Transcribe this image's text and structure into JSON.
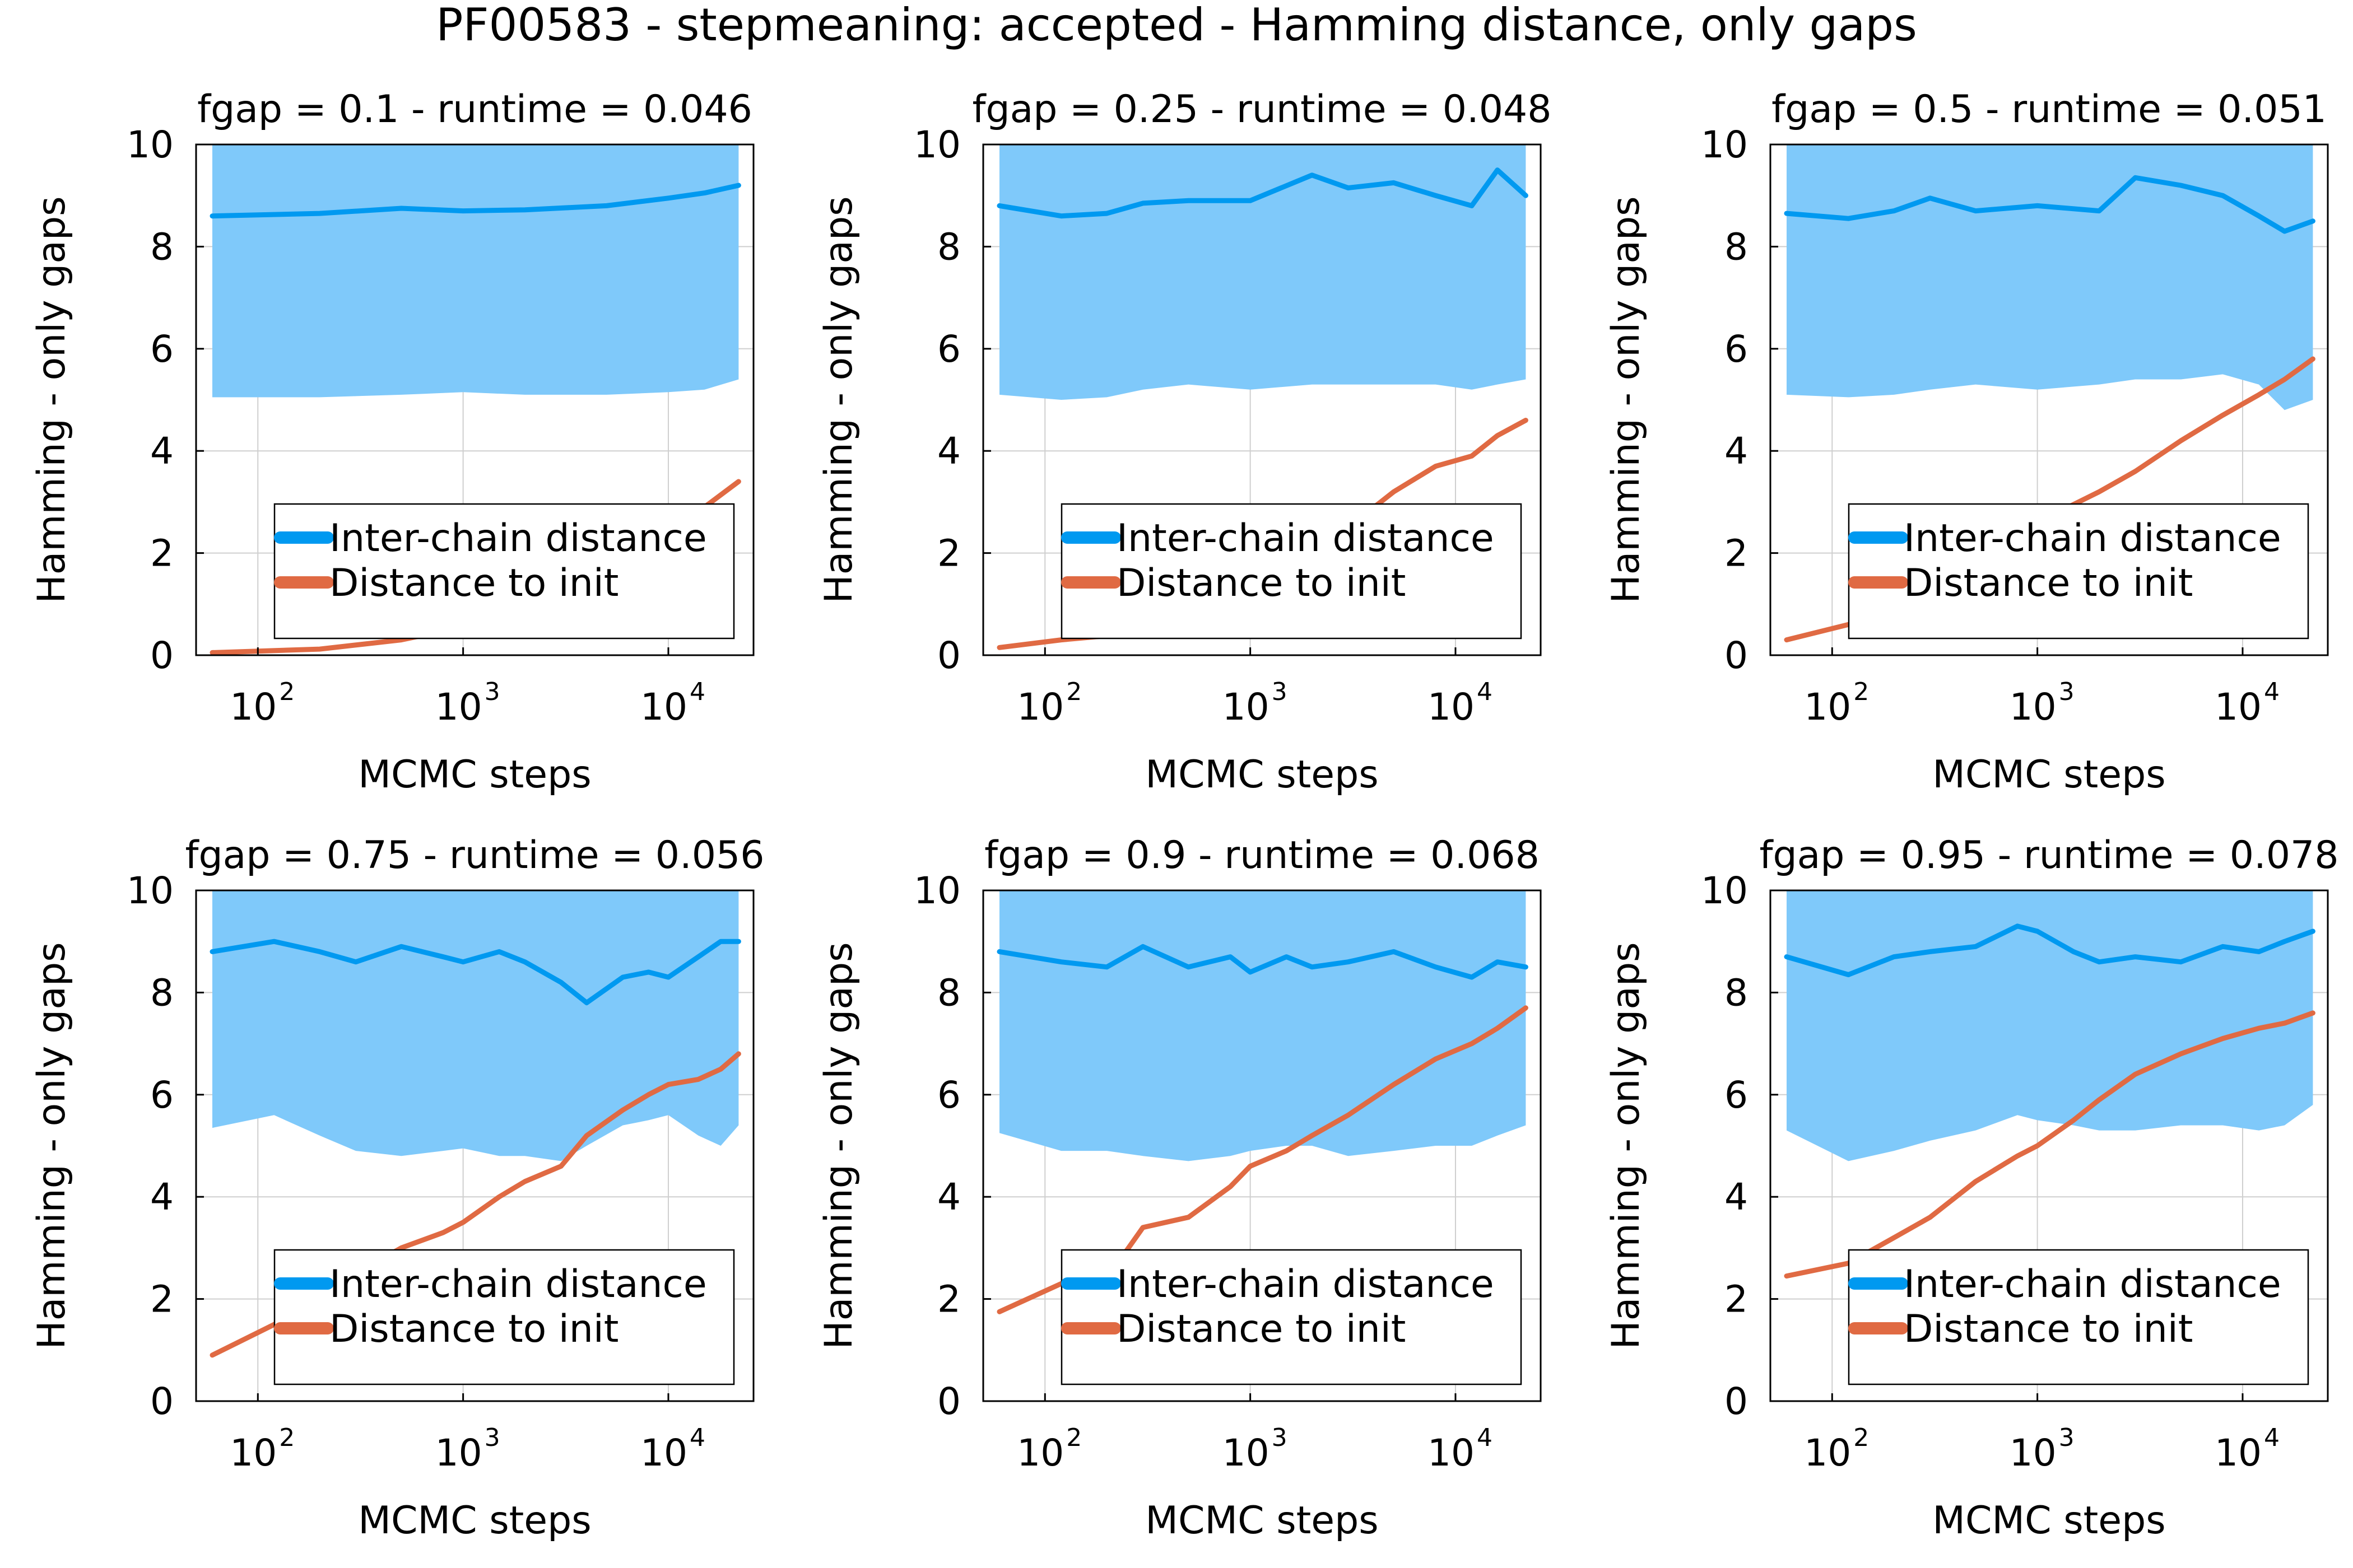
{
  "figure": {
    "title": "PF00583 - stepmeaning: accepted - Hamming distance, only gaps"
  },
  "colors": {
    "inter_chain": "#0099f0",
    "band": "#7fc9fa",
    "distance_init": "#e06a43",
    "grid": "#cfcfcf",
    "axis": "#000000"
  },
  "chart_data": [
    {
      "type": "line",
      "title": "fgap = 0.1 - runtime = 0.046",
      "xlabel": "MCMC steps",
      "ylabel": "Hamming - only gaps",
      "xscale": "log",
      "xlim": [
        50,
        26000
      ],
      "ylim": [
        0,
        10
      ],
      "xticks": [
        {
          "base": "10",
          "exp": "2"
        },
        {
          "base": "10",
          "exp": "3"
        },
        {
          "base": "10",
          "exp": "4"
        }
      ],
      "yticks": [
        "0",
        "2",
        "4",
        "6",
        "8",
        "10"
      ],
      "grid": true,
      "legend": {
        "placement": "bottom-right",
        "entries": [
          "Inter-chain distance",
          "Distance to init"
        ]
      },
      "series": [
        {
          "name": "Inter-chain distance",
          "x": [
            60,
            200,
            500,
            1000,
            2000,
            5000,
            10000,
            15000,
            22000
          ],
          "y": [
            8.6,
            8.65,
            8.75,
            8.7,
            8.72,
            8.8,
            8.95,
            9.05,
            9.2
          ],
          "band_low": [
            5.05,
            5.05,
            5.1,
            5.15,
            5.1,
            5.1,
            5.15,
            5.2,
            5.4
          ],
          "band_high": [
            10,
            10,
            10,
            10,
            10,
            10,
            10,
            10,
            10
          ]
        },
        {
          "name": "Distance to init",
          "x": [
            60,
            200,
            500,
            1000,
            2000,
            5000,
            10000,
            15000,
            22000
          ],
          "y": [
            0.05,
            0.12,
            0.3,
            0.55,
            0.9,
            1.6,
            2.4,
            2.9,
            3.4
          ]
        }
      ]
    },
    {
      "type": "line",
      "title": "fgap = 0.25 - runtime = 0.048",
      "xlabel": "MCMC steps",
      "ylabel": "Hamming - only gaps",
      "xscale": "log",
      "xlim": [
        50,
        26000
      ],
      "ylim": [
        0,
        10
      ],
      "xticks": [
        {
          "base": "10",
          "exp": "2"
        },
        {
          "base": "10",
          "exp": "3"
        },
        {
          "base": "10",
          "exp": "4"
        }
      ],
      "yticks": [
        "0",
        "2",
        "4",
        "6",
        "8",
        "10"
      ],
      "grid": true,
      "legend": {
        "placement": "bottom-right",
        "entries": [
          "Inter-chain distance",
          "Distance to init"
        ]
      },
      "series": [
        {
          "name": "Inter-chain distance",
          "x": [
            60,
            120,
            200,
            300,
            500,
            1000,
            2000,
            3000,
            5000,
            8000,
            12000,
            16000,
            22000
          ],
          "y": [
            8.8,
            8.6,
            8.65,
            8.85,
            8.9,
            8.9,
            9.4,
            9.15,
            9.25,
            9.0,
            8.8,
            9.5,
            9.0
          ],
          "band_low": [
            5.1,
            5.0,
            5.05,
            5.2,
            5.3,
            5.2,
            5.3,
            5.3,
            5.3,
            5.3,
            5.2,
            5.3,
            5.4
          ],
          "band_high": [
            10,
            10,
            10,
            10,
            10,
            10,
            10,
            10,
            10,
            10,
            10,
            10,
            10
          ]
        },
        {
          "name": "Distance to init",
          "x": [
            60,
            120,
            200,
            300,
            500,
            1000,
            2000,
            3000,
            5000,
            8000,
            12000,
            16000,
            22000
          ],
          "y": [
            0.15,
            0.3,
            0.38,
            0.5,
            0.8,
            1.3,
            2.0,
            2.5,
            3.2,
            3.7,
            3.9,
            4.3,
            4.6
          ]
        }
      ]
    },
    {
      "type": "line",
      "title": "fgap = 0.5 - runtime = 0.051",
      "xlabel": "MCMC steps",
      "ylabel": "Hamming - only gaps",
      "xscale": "log",
      "xlim": [
        50,
        26000
      ],
      "ylim": [
        0,
        10
      ],
      "xticks": [
        {
          "base": "10",
          "exp": "2"
        },
        {
          "base": "10",
          "exp": "3"
        },
        {
          "base": "10",
          "exp": "4"
        }
      ],
      "yticks": [
        "0",
        "2",
        "4",
        "6",
        "8",
        "10"
      ],
      "grid": true,
      "legend": {
        "placement": "bottom-right",
        "entries": [
          "Inter-chain distance",
          "Distance to init"
        ]
      },
      "series": [
        {
          "name": "Inter-chain distance",
          "x": [
            60,
            120,
            200,
            300,
            500,
            1000,
            2000,
            3000,
            5000,
            8000,
            12000,
            16000,
            22000
          ],
          "y": [
            8.65,
            8.55,
            8.7,
            8.95,
            8.7,
            8.8,
            8.7,
            9.35,
            9.2,
            9.0,
            8.6,
            8.3,
            8.5
          ],
          "band_low": [
            5.1,
            5.05,
            5.1,
            5.2,
            5.3,
            5.2,
            5.3,
            5.4,
            5.4,
            5.5,
            5.3,
            4.8,
            5.0
          ],
          "band_high": [
            10,
            10,
            10,
            10,
            10,
            10,
            10,
            10,
            10,
            10,
            10,
            10,
            10
          ]
        },
        {
          "name": "Distance to init",
          "x": [
            60,
            120,
            200,
            300,
            500,
            1000,
            2000,
            3000,
            5000,
            8000,
            12000,
            16000,
            22000
          ],
          "y": [
            0.3,
            0.6,
            0.9,
            1.3,
            1.9,
            2.6,
            3.2,
            3.6,
            4.2,
            4.7,
            5.1,
            5.4,
            5.8
          ]
        }
      ]
    },
    {
      "type": "line",
      "title": "fgap = 0.75 - runtime = 0.056",
      "xlabel": "MCMC steps",
      "ylabel": "Hamming - only gaps",
      "xscale": "log",
      "xlim": [
        50,
        26000
      ],
      "ylim": [
        0,
        10
      ],
      "xticks": [
        {
          "base": "10",
          "exp": "2"
        },
        {
          "base": "10",
          "exp": "3"
        },
        {
          "base": "10",
          "exp": "4"
        }
      ],
      "yticks": [
        "0",
        "2",
        "4",
        "6",
        "8",
        "10"
      ],
      "grid": true,
      "legend": {
        "placement": "bottom-right",
        "entries": [
          "Inter-chain distance",
          "Distance to init"
        ]
      },
      "series": [
        {
          "name": "Inter-chain distance",
          "x": [
            60,
            120,
            200,
            300,
            500,
            800,
            1000,
            1500,
            2000,
            3000,
            4000,
            6000,
            8000,
            10000,
            14000,
            18000,
            22000
          ],
          "y": [
            8.8,
            9.0,
            8.8,
            8.6,
            8.9,
            8.7,
            8.6,
            8.8,
            8.6,
            8.2,
            7.8,
            8.3,
            8.4,
            8.3,
            8.7,
            9.0,
            9.0
          ],
          "band_low": [
            5.35,
            5.6,
            5.2,
            4.9,
            4.8,
            4.9,
            4.95,
            4.8,
            4.8,
            4.7,
            5.0,
            5.4,
            5.5,
            5.6,
            5.2,
            5.0,
            5.4
          ],
          "band_high": [
            10,
            10,
            10,
            10,
            10,
            10,
            10,
            10,
            10,
            10,
            10,
            10,
            10,
            10,
            10,
            10,
            10
          ]
        },
        {
          "name": "Distance to init",
          "x": [
            60,
            120,
            200,
            300,
            500,
            800,
            1000,
            1500,
            2000,
            3000,
            4000,
            6000,
            8000,
            10000,
            14000,
            18000,
            22000
          ],
          "y": [
            0.9,
            1.5,
            2.0,
            2.5,
            3.0,
            3.3,
            3.5,
            4.0,
            4.3,
            4.6,
            5.2,
            5.7,
            6.0,
            6.2,
            6.3,
            6.5,
            6.8
          ]
        }
      ]
    },
    {
      "type": "line",
      "title": "fgap = 0.9 - runtime = 0.068",
      "xlabel": "MCMC steps",
      "ylabel": "Hamming - only gaps",
      "xscale": "log",
      "xlim": [
        50,
        26000
      ],
      "ylim": [
        0,
        10
      ],
      "xticks": [
        {
          "base": "10",
          "exp": "2"
        },
        {
          "base": "10",
          "exp": "3"
        },
        {
          "base": "10",
          "exp": "4"
        }
      ],
      "yticks": [
        "0",
        "2",
        "4",
        "6",
        "8",
        "10"
      ],
      "grid": true,
      "legend": {
        "placement": "bottom-right",
        "entries": [
          "Inter-chain distance",
          "Distance to init"
        ]
      },
      "series": [
        {
          "name": "Inter-chain distance",
          "x": [
            60,
            120,
            200,
            300,
            500,
            800,
            1000,
            1500,
            2000,
            3000,
            5000,
            8000,
            12000,
            16000,
            22000
          ],
          "y": [
            8.8,
            8.6,
            8.5,
            8.9,
            8.5,
            8.7,
            8.4,
            8.7,
            8.5,
            8.6,
            8.8,
            8.5,
            8.3,
            8.6,
            8.5
          ],
          "band_low": [
            5.25,
            4.9,
            4.9,
            4.8,
            4.7,
            4.8,
            4.9,
            5.0,
            5.0,
            4.8,
            4.9,
            5.0,
            5.0,
            5.2,
            5.4
          ],
          "band_high": [
            10,
            10,
            10,
            10,
            10,
            10,
            10,
            10,
            10,
            10,
            10,
            10,
            10,
            10,
            10
          ]
        },
        {
          "name": "Distance to init",
          "x": [
            60,
            120,
            200,
            300,
            500,
            800,
            1000,
            1500,
            2000,
            3000,
            5000,
            8000,
            12000,
            16000,
            22000
          ],
          "y": [
            1.75,
            2.3,
            2.4,
            3.4,
            3.6,
            4.2,
            4.6,
            4.9,
            5.2,
            5.6,
            6.2,
            6.7,
            7.0,
            7.3,
            7.7
          ]
        }
      ]
    },
    {
      "type": "line",
      "title": "fgap = 0.95 - runtime = 0.078",
      "xlabel": "MCMC steps",
      "ylabel": "Hamming - only gaps",
      "xscale": "log",
      "xlim": [
        50,
        26000
      ],
      "ylim": [
        0,
        10
      ],
      "xticks": [
        {
          "base": "10",
          "exp": "2"
        },
        {
          "base": "10",
          "exp": "3"
        },
        {
          "base": "10",
          "exp": "4"
        }
      ],
      "yticks": [
        "0",
        "2",
        "4",
        "6",
        "8",
        "10"
      ],
      "grid": true,
      "legend": {
        "placement": "bottom-right",
        "entries": [
          "Inter-chain distance",
          "Distance to init"
        ]
      },
      "series": [
        {
          "name": "Inter-chain distance",
          "x": [
            60,
            120,
            200,
            300,
            500,
            800,
            1000,
            1500,
            2000,
            3000,
            5000,
            8000,
            12000,
            16000,
            22000
          ],
          "y": [
            8.7,
            8.35,
            8.7,
            8.8,
            8.9,
            9.3,
            9.2,
            8.8,
            8.6,
            8.7,
            8.6,
            8.9,
            8.8,
            9.0,
            9.2
          ],
          "band_low": [
            5.3,
            4.7,
            4.9,
            5.1,
            5.3,
            5.6,
            5.5,
            5.4,
            5.3,
            5.3,
            5.4,
            5.4,
            5.3,
            5.4,
            5.8
          ],
          "band_high": [
            10,
            10,
            10,
            10,
            10,
            10,
            10,
            10,
            10,
            10,
            10,
            10,
            10,
            10,
            10
          ]
        },
        {
          "name": "Distance to init",
          "x": [
            60,
            120,
            200,
            300,
            500,
            800,
            1000,
            1500,
            2000,
            3000,
            5000,
            8000,
            12000,
            16000,
            22000
          ],
          "y": [
            2.45,
            2.7,
            3.2,
            3.6,
            4.3,
            4.8,
            5.0,
            5.5,
            5.9,
            6.4,
            6.8,
            7.1,
            7.3,
            7.4,
            7.6
          ]
        }
      ]
    }
  ]
}
